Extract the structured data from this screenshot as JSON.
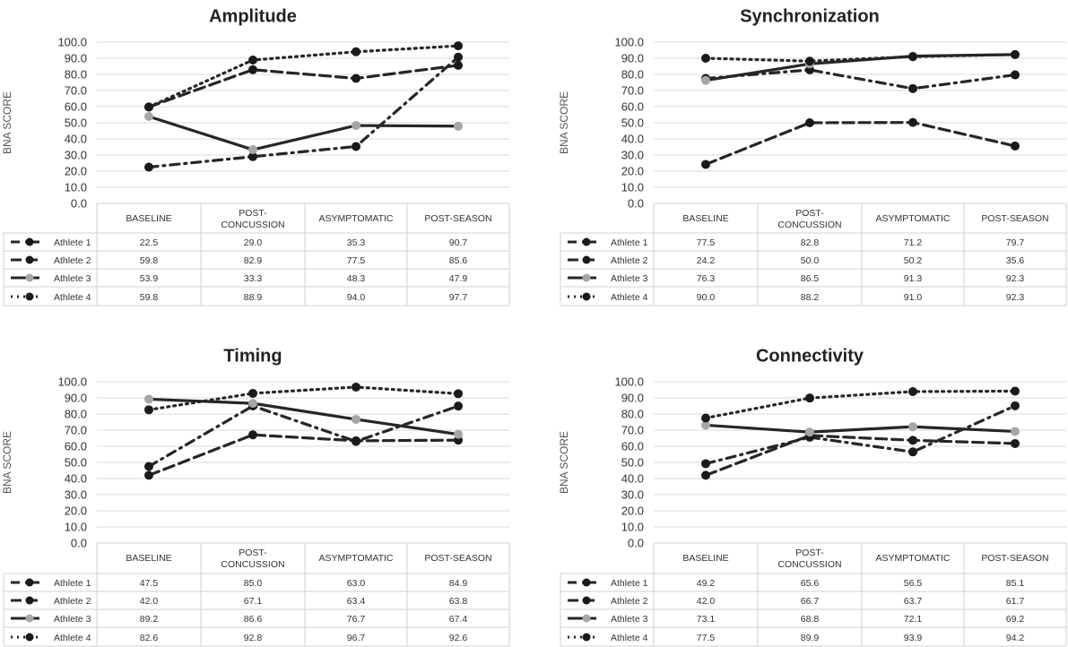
{
  "y_axis_label": "BNA SCORE",
  "column_headers": [
    [
      "BASELINE"
    ],
    [
      "POST-",
      "CONCUSSION"
    ],
    [
      "ASYMPTOMATIC"
    ],
    [
      "POST-SEASON"
    ]
  ],
  "series_styles": {
    "Athlete 1": {
      "dash": "dashdot",
      "marker": "#1a1a1a"
    },
    "Athlete 2": {
      "dash": "dash",
      "marker": "#1a1a1a"
    },
    "Athlete 3": {
      "dash": "solid",
      "marker": "#a6a6a6"
    },
    "Athlete 4": {
      "dash": "dot",
      "marker": "#1a1a1a"
    }
  },
  "line_color": "#262626",
  "chart_data": [
    {
      "type": "line",
      "title": "Amplitude",
      "xlabel": "",
      "ylabel": "BNA SCORE",
      "ylim": [
        0,
        100
      ],
      "yticks": [
        "0.0",
        "10.0",
        "20.0",
        "30.0",
        "40.0",
        "50.0",
        "60.0",
        "70.0",
        "80.0",
        "90.0",
        "100.0"
      ],
      "categories": [
        "BASELINE",
        "POST-CONCUSSION",
        "ASYMPTOMATIC",
        "POST-SEASON"
      ],
      "series": [
        {
          "name": "Athlete 1",
          "values": [
            22.5,
            29.0,
            35.3,
            90.7
          ],
          "labels": [
            "22.5",
            "29.0",
            "35.3",
            "90.7"
          ]
        },
        {
          "name": "Athlete 2",
          "values": [
            59.8,
            82.9,
            77.5,
            85.6
          ],
          "labels": [
            "59.8",
            "82.9",
            "77.5",
            "85.6"
          ]
        },
        {
          "name": "Athlete 3",
          "values": [
            53.9,
            33.3,
            48.3,
            47.9
          ],
          "labels": [
            "53.9",
            "33.3",
            "48.3",
            "47.9"
          ]
        },
        {
          "name": "Athlete 4",
          "values": [
            59.8,
            88.9,
            94.0,
            97.7
          ],
          "labels": [
            "59.8",
            "88.9",
            "94.0",
            "97.7"
          ]
        }
      ]
    },
    {
      "type": "line",
      "title": "Synchronization",
      "xlabel": "",
      "ylabel": "BNA SCORE",
      "ylim": [
        0,
        100
      ],
      "yticks": [
        "0.0",
        "10.0",
        "20.0",
        "30.0",
        "40.0",
        "50.0",
        "60.0",
        "70.0",
        "80.0",
        "90.0",
        "100.0"
      ],
      "categories": [
        "BASELINE",
        "POST-CONCUSSION",
        "ASYMPTOMATIC",
        "POST-SEASON"
      ],
      "series": [
        {
          "name": "Athlete 1",
          "values": [
            77.5,
            82.8,
            71.2,
            79.7
          ],
          "labels": [
            "77.5",
            "82.8",
            "71.2",
            "79.7"
          ]
        },
        {
          "name": "Athlete 2",
          "values": [
            24.2,
            50.0,
            50.2,
            35.6
          ],
          "labels": [
            "24.2",
            "50.0",
            "50.2",
            "35.6"
          ]
        },
        {
          "name": "Athlete 3",
          "values": [
            76.3,
            86.5,
            91.3,
            92.3
          ],
          "labels": [
            "76.3",
            "86.5",
            "91.3",
            "92.3"
          ]
        },
        {
          "name": "Athlete 4",
          "values": [
            90.0,
            88.2,
            91.0,
            92.3
          ],
          "labels": [
            "90.0",
            "88.2",
            "91.0",
            "92.3"
          ]
        }
      ]
    },
    {
      "type": "line",
      "title": "Timing",
      "xlabel": "",
      "ylabel": "BNA SCORE",
      "ylim": [
        0,
        100
      ],
      "yticks": [
        "0.0",
        "10.0",
        "20.0",
        "30.0",
        "40.0",
        "50.0",
        "60.0",
        "70.0",
        "80.0",
        "90.0",
        "100.0"
      ],
      "categories": [
        "BASELINE",
        "POST-CONCUSSION",
        "ASYMPTOMATIC",
        "POST-SEASON"
      ],
      "series": [
        {
          "name": "Athlete 1",
          "values": [
            47.5,
            85.0,
            63.0,
            84.9
          ],
          "labels": [
            "47.5",
            "85.0",
            "63.0",
            "84.9"
          ]
        },
        {
          "name": "Athlete 2",
          "values": [
            42.0,
            67.1,
            63.4,
            63.8
          ],
          "labels": [
            "42.0",
            "67.1",
            "63.4",
            "63.8"
          ]
        },
        {
          "name": "Athlete 3",
          "values": [
            89.2,
            86.6,
            76.7,
            67.4
          ],
          "labels": [
            "89.2",
            "86.6",
            "76.7",
            "67.4"
          ]
        },
        {
          "name": "Athlete 4",
          "values": [
            82.6,
            92.8,
            96.7,
            92.6
          ],
          "labels": [
            "82.6",
            "92.8",
            "96.7",
            "92.6"
          ]
        }
      ]
    },
    {
      "type": "line",
      "title": "Connectivity",
      "xlabel": "",
      "ylabel": "BNA SCORE",
      "ylim": [
        0,
        100
      ],
      "yticks": [
        "0.0",
        "10.0",
        "20.0",
        "30.0",
        "40.0",
        "50.0",
        "60.0",
        "70.0",
        "80.0",
        "90.0",
        "100.0"
      ],
      "categories": [
        "BASELINE",
        "POST-CONCUSSION",
        "ASYMPTOMATIC",
        "POST-SEASON"
      ],
      "series": [
        {
          "name": "Athlete 1",
          "values": [
            49.2,
            65.6,
            56.5,
            85.1
          ],
          "labels": [
            "49.2",
            "65.6",
            "56.5",
            "85.1"
          ]
        },
        {
          "name": "Athlete 2",
          "values": [
            42.0,
            66.7,
            63.7,
            61.7
          ],
          "labels": [
            "42.0",
            "66.7",
            "63.7",
            "61.7"
          ]
        },
        {
          "name": "Athlete 3",
          "values": [
            73.1,
            68.8,
            72.1,
            69.2
          ],
          "labels": [
            "73.1",
            "68.8",
            "72.1",
            "69.2"
          ]
        },
        {
          "name": "Athlete 4",
          "values": [
            77.5,
            89.9,
            93.9,
            94.2
          ],
          "labels": [
            "77.5",
            "89.9",
            "93.9",
            "94.2"
          ]
        }
      ]
    }
  ]
}
